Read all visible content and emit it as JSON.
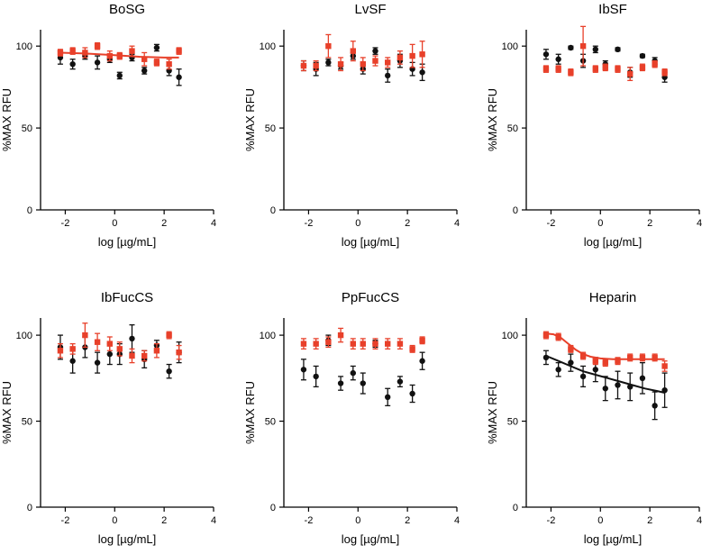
{
  "figure": {
    "colors": {
      "black_series": "#111111",
      "red_series": "#e8402a",
      "axis": "#000000"
    }
  },
  "chart_data": [
    {
      "type": "scatter",
      "title": "BoSG",
      "xlabel": "log [µg/mL]",
      "ylabel": "%MAX RFU",
      "xlim": [
        -3,
        4
      ],
      "ylim": [
        0,
        110
      ],
      "xticks": [
        "-2",
        "0",
        "2",
        "4"
      ],
      "yticks": [
        "0",
        "50",
        "100"
      ],
      "series": [
        {
          "color": "black",
          "marker": "circle",
          "points": [
            [
              -2.2,
              93,
              4
            ],
            [
              -1.7,
              89,
              3
            ],
            [
              -1.2,
              94,
              2
            ],
            [
              -0.7,
              90,
              4
            ],
            [
              -0.2,
              92,
              2
            ],
            [
              0.2,
              82,
              2
            ],
            [
              0.7,
              93,
              2
            ],
            [
              1.2,
              85,
              2
            ],
            [
              1.7,
              99,
              2
            ],
            [
              2.2,
              85,
              3
            ],
            [
              2.6,
              81,
              5
            ]
          ],
          "fit": null
        },
        {
          "color": "red",
          "marker": "square",
          "points": [
            [
              -2.2,
              96,
              2
            ],
            [
              -1.7,
              97,
              2
            ],
            [
              -1.2,
              96,
              3
            ],
            [
              -0.7,
              100,
              2
            ],
            [
              -0.2,
              94,
              3
            ],
            [
              0.2,
              94,
              2
            ],
            [
              0.7,
              97,
              3
            ],
            [
              1.2,
              92,
              4
            ],
            [
              1.7,
              90,
              2
            ],
            [
              2.2,
              89,
              3
            ],
            [
              2.6,
              97,
              2
            ]
          ],
          "fit": [
            [
              -2.2,
              96
            ],
            [
              -1.2,
              95.5
            ],
            [
              0,
              94.5
            ],
            [
              1,
              93.5
            ],
            [
              2,
              93
            ],
            [
              2.6,
              93
            ]
          ]
        }
      ]
    },
    {
      "type": "scatter",
      "title": "LvSF",
      "xlabel": "log [µg/mL]",
      "ylabel": "%MAX RFU",
      "xlim": [
        -3,
        4
      ],
      "ylim": [
        0,
        110
      ],
      "xticks": [
        "-2",
        "0",
        "2",
        "4"
      ],
      "yticks": [
        "0",
        "50",
        "100"
      ],
      "series": [
        {
          "color": "black",
          "marker": "circle",
          "points": [
            [
              -2.2,
              88,
              3
            ],
            [
              -1.7,
              86,
              4
            ],
            [
              -1.2,
              90,
              2
            ],
            [
              -0.7,
              88,
              2
            ],
            [
              -0.2,
              94,
              2
            ],
            [
              0.2,
              86,
              3
            ],
            [
              0.7,
              97,
              2
            ],
            [
              1.2,
              82,
              4
            ],
            [
              1.7,
              91,
              4
            ],
            [
              2.2,
              86,
              4
            ],
            [
              2.6,
              84,
              5
            ]
          ],
          "fit": null
        },
        {
          "color": "red",
          "marker": "square",
          "points": [
            [
              -2.2,
              88,
              3
            ],
            [
              -1.7,
              88,
              3
            ],
            [
              -1.2,
              100,
              7
            ],
            [
              -0.7,
              89,
              4
            ],
            [
              -0.2,
              97,
              6
            ],
            [
              0.2,
              89,
              4
            ],
            [
              0.7,
              91,
              3
            ],
            [
              1.2,
              90,
              3
            ],
            [
              1.7,
              93,
              4
            ],
            [
              2.2,
              94,
              7
            ],
            [
              2.6,
              95,
              8
            ]
          ],
          "fit": null
        }
      ]
    },
    {
      "type": "scatter",
      "title": "IbSF",
      "xlabel": "log [µg/mL]",
      "ylabel": "%MAX RFU",
      "xlim": [
        -3,
        4
      ],
      "ylim": [
        0,
        110
      ],
      "xticks": [
        "-2",
        "0",
        "2",
        "4"
      ],
      "yticks": [
        "0",
        "50",
        "100"
      ],
      "series": [
        {
          "color": "black",
          "marker": "circle",
          "points": [
            [
              -2.2,
              95,
              3
            ],
            [
              -1.7,
              92,
              3
            ],
            [
              -1.2,
              99,
              1
            ],
            [
              -0.7,
              91,
              4
            ],
            [
              -0.2,
              98,
              2
            ],
            [
              0.2,
              89,
              2
            ],
            [
              0.7,
              98,
              1
            ],
            [
              1.2,
              84,
              3
            ],
            [
              1.7,
              94,
              1
            ],
            [
              2.2,
              91,
              2
            ],
            [
              2.6,
              81,
              3
            ]
          ],
          "fit": null
        },
        {
          "color": "red",
          "marker": "square",
          "points": [
            [
              -2.2,
              86,
              2
            ],
            [
              -1.7,
              86,
              2
            ],
            [
              -1.2,
              84,
              2
            ],
            [
              -0.7,
              100,
              12
            ],
            [
              -0.2,
              86,
              2
            ],
            [
              0.2,
              87,
              2
            ],
            [
              0.7,
              86,
              2
            ],
            [
              1.2,
              83,
              4
            ],
            [
              1.7,
              87,
              2
            ],
            [
              2.2,
              89,
              2
            ],
            [
              2.6,
              84,
              2
            ]
          ],
          "fit": null
        }
      ]
    },
    {
      "type": "scatter",
      "title": "IbFucCS",
      "xlabel": "log [µg/mL]",
      "ylabel": "%MAX RFU",
      "xlim": [
        -3,
        4
      ],
      "ylim": [
        0,
        110
      ],
      "xticks": [
        "-2",
        "0",
        "2",
        "4"
      ],
      "yticks": [
        "0",
        "50",
        "100"
      ],
      "series": [
        {
          "color": "black",
          "marker": "circle",
          "points": [
            [
              -2.2,
              93,
              7
            ],
            [
              -1.7,
              85,
              7
            ],
            [
              -1.2,
              93,
              6
            ],
            [
              -0.7,
              84,
              6
            ],
            [
              -0.2,
              89,
              6
            ],
            [
              0.2,
              89,
              6
            ],
            [
              0.7,
              98,
              8
            ],
            [
              1.2,
              86,
              5
            ],
            [
              1.7,
              94,
              3
            ],
            [
              2.2,
              79,
              4
            ],
            [
              2.6,
              90,
              6
            ]
          ],
          "fit": null
        },
        {
          "color": "red",
          "marker": "square",
          "points": [
            [
              -2.2,
              91,
              4
            ],
            [
              -1.7,
              92,
              3
            ],
            [
              -1.2,
              100,
              7
            ],
            [
              -0.7,
              96,
              5
            ],
            [
              -0.2,
              95,
              4
            ],
            [
              0.2,
              92,
              4
            ],
            [
              0.7,
              88,
              4
            ],
            [
              1.2,
              88,
              3
            ],
            [
              1.7,
              91,
              4
            ],
            [
              2.2,
              100,
              2
            ],
            [
              2.6,
              90,
              4
            ]
          ],
          "fit": null
        }
      ]
    },
    {
      "type": "scatter",
      "title": "PpFucCS",
      "xlabel": "log [µg/mL]",
      "ylabel": "%MAX RFU",
      "xlim": [
        -3,
        4
      ],
      "ylim": [
        0,
        110
      ],
      "xticks": [
        "-2",
        "0",
        "2",
        "4"
      ],
      "yticks": [
        "0",
        "50",
        "100"
      ],
      "series": [
        {
          "color": "black",
          "marker": "circle",
          "points": [
            [
              -2.2,
              80,
              6
            ],
            [
              -1.7,
              76,
              6
            ],
            [
              -1.2,
              97,
              3
            ],
            [
              -0.7,
              72,
              4
            ],
            [
              -0.2,
              78,
              4
            ],
            [
              0.2,
              72,
              6
            ],
            [
              0.7,
              95,
              2
            ],
            [
              1.2,
              64,
              5
            ],
            [
              1.7,
              73,
              3
            ],
            [
              2.2,
              66,
              5
            ],
            [
              2.6,
              85,
              5
            ]
          ],
          "fit": null
        },
        {
          "color": "red",
          "marker": "square",
          "points": [
            [
              -2.2,
              95,
              3
            ],
            [
              -1.7,
              95,
              3
            ],
            [
              -1.2,
              96,
              3
            ],
            [
              -0.7,
              100,
              4
            ],
            [
              -0.2,
              95,
              3
            ],
            [
              0.2,
              95,
              3
            ],
            [
              0.7,
              95,
              3
            ],
            [
              1.2,
              95,
              3
            ],
            [
              1.7,
              95,
              3
            ],
            [
              2.2,
              92,
              2
            ],
            [
              2.6,
              97,
              2
            ]
          ],
          "fit": null
        }
      ]
    },
    {
      "type": "scatter",
      "title": "Heparin",
      "xlabel": "log [µg/mL]",
      "ylabel": "%MAX RFU",
      "xlim": [
        -3,
        4
      ],
      "ylim": [
        0,
        110
      ],
      "xticks": [
        "-2",
        "0",
        "2",
        "4"
      ],
      "yticks": [
        "0",
        "50",
        "100"
      ],
      "series": [
        {
          "color": "black",
          "marker": "circle",
          "points": [
            [
              -2.2,
              87,
              4
            ],
            [
              -1.7,
              80,
              4
            ],
            [
              -1.2,
              84,
              5
            ],
            [
              -0.7,
              76,
              6
            ],
            [
              -0.2,
              80,
              7
            ],
            [
              0.2,
              69,
              7
            ],
            [
              0.7,
              71,
              8
            ],
            [
              1.2,
              70,
              8
            ],
            [
              1.7,
              75,
              9
            ],
            [
              2.2,
              59,
              8
            ],
            [
              2.6,
              68,
              10
            ]
          ],
          "fit": [
            [
              -2.2,
              88
            ],
            [
              -1.7,
              85
            ],
            [
              -1.2,
              82
            ],
            [
              -0.7,
              79
            ],
            [
              -0.2,
              77
            ],
            [
              0.3,
              75
            ],
            [
              0.8,
              73
            ],
            [
              1.3,
              71
            ],
            [
              1.8,
              69
            ],
            [
              2.3,
              67.5
            ],
            [
              2.6,
              66.5
            ]
          ]
        },
        {
          "color": "red",
          "marker": "square",
          "points": [
            [
              -2.2,
              100,
              2
            ],
            [
              -1.7,
              99,
              2
            ],
            [
              -1.2,
              92,
              2
            ],
            [
              -0.7,
              88,
              2
            ],
            [
              -0.2,
              85,
              2
            ],
            [
              0.2,
              84,
              2
            ],
            [
              0.7,
              85,
              2
            ],
            [
              1.2,
              87,
              2
            ],
            [
              1.7,
              87,
              2
            ],
            [
              2.2,
              87,
              2
            ],
            [
              2.6,
              82,
              3
            ]
          ],
          "fit": [
            [
              -2.2,
              101
            ],
            [
              -1.9,
              100.5
            ],
            [
              -1.6,
              98.5
            ],
            [
              -1.3,
              95
            ],
            [
              -1.0,
              91.5
            ],
            [
              -0.7,
              89
            ],
            [
              -0.4,
              87.5
            ],
            [
              0,
              86.5
            ],
            [
              0.5,
              86
            ],
            [
              1,
              86
            ],
            [
              2,
              86
            ],
            [
              2.6,
              86
            ]
          ]
        }
      ]
    }
  ]
}
